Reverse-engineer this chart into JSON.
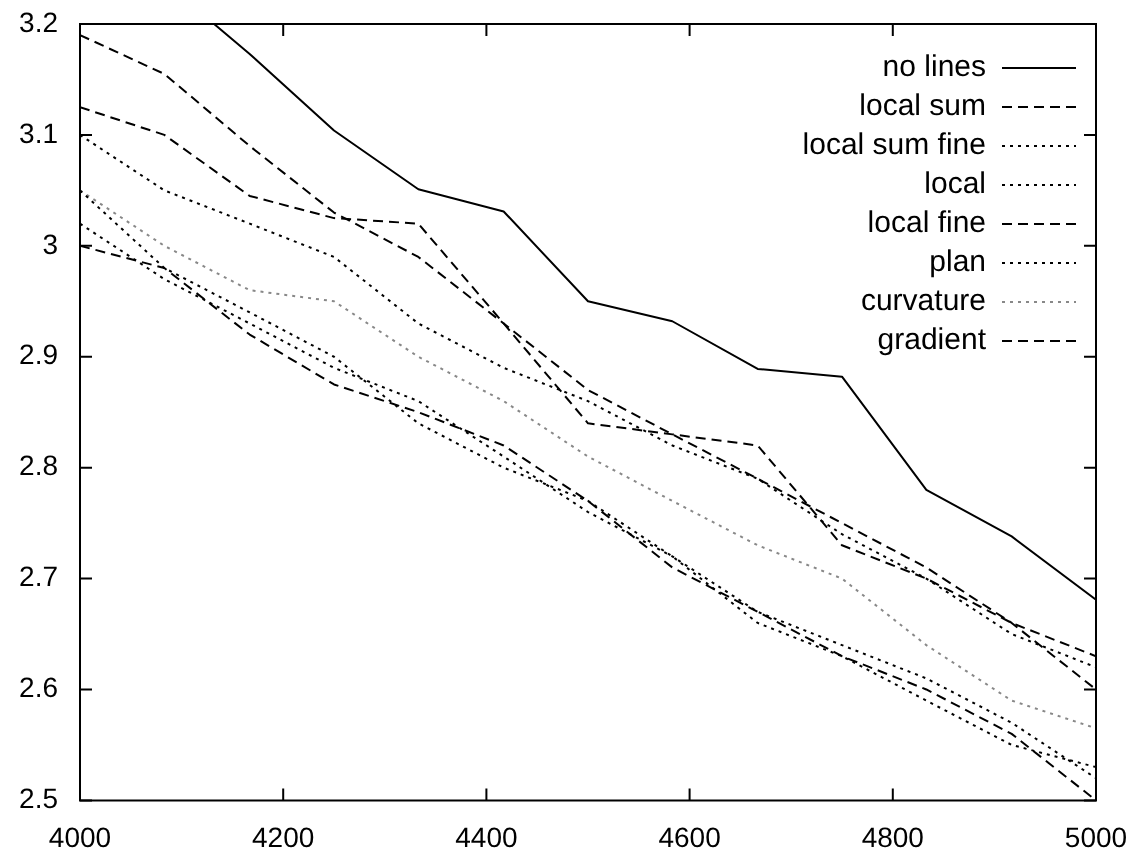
{
  "chart_data": {
    "type": "line",
    "x": [
      4000,
      4083,
      4167,
      4250,
      4333,
      4417,
      4500,
      4583,
      4667,
      4750,
      4833,
      4917,
      5000
    ],
    "xlim": [
      4000,
      5000
    ],
    "xticks": [
      4000,
      4200,
      4400,
      4600,
      4800,
      5000
    ],
    "ylim": [
      2.5,
      3.2
    ],
    "yticks": [
      2.5,
      2.6,
      2.7,
      2.8,
      2.9,
      3,
      3.1,
      3.2
    ],
    "grid": false,
    "legend": "top right",
    "marker": "none",
    "series": [
      {
        "name": "no lines",
        "color": "#000000",
        "line_style": "solid",
        "x": [
          4132,
          4167,
          4250,
          4333,
          4417,
          4500,
          4583,
          4667,
          4750,
          4833,
          4917,
          5000
        ],
        "values": [
          3.2,
          3.173,
          3.104,
          3.051,
          3.031,
          2.95,
          2.932,
          2.889,
          2.882,
          2.78,
          2.738,
          2.681
        ]
      },
      {
        "name": "local sum",
        "color": "#000000",
        "line_style": "dashed",
        "values": [
          3.125,
          3.1,
          3.045,
          3.025,
          3.02,
          2.93,
          2.84,
          2.83,
          2.82,
          2.73,
          2.7,
          2.66,
          2.63
        ]
      },
      {
        "name": "local sum fine",
        "color": "#000000",
        "line_style": "dotted",
        "values": [
          3.1,
          3.05,
          3.02,
          2.99,
          2.93,
          2.89,
          2.86,
          2.82,
          2.79,
          2.74,
          2.7,
          2.65,
          2.62
        ]
      },
      {
        "name": "local",
        "color": "#000000",
        "line_style": "dotted",
        "values": [
          3.05,
          2.98,
          2.94,
          2.9,
          2.84,
          2.8,
          2.77,
          2.72,
          2.66,
          2.63,
          2.59,
          2.55,
          2.53
        ]
      },
      {
        "name": "local fine",
        "color": "#000000",
        "line_style": "dashed",
        "values": [
          3.19,
          3.155,
          3.09,
          3.03,
          2.99,
          2.93,
          2.87,
          2.83,
          2.79,
          2.75,
          2.71,
          2.66,
          2.6
        ]
      },
      {
        "name": "plan",
        "color": "#000000",
        "line_style": "dotted",
        "values": [
          3.02,
          2.97,
          2.93,
          2.89,
          2.86,
          2.81,
          2.76,
          2.72,
          2.67,
          2.64,
          2.61,
          2.57,
          2.52
        ]
      },
      {
        "name": "curvature",
        "color": "#888888",
        "line_style": "dotted",
        "values": [
          3.05,
          3.0,
          2.96,
          2.95,
          2.9,
          2.86,
          2.81,
          2.77,
          2.73,
          2.7,
          2.64,
          2.59,
          2.565
        ]
      },
      {
        "name": "gradient",
        "color": "#000000",
        "line_style": "dashed",
        "values": [
          3.0,
          2.98,
          2.92,
          2.875,
          2.85,
          2.82,
          2.77,
          2.71,
          2.67,
          2.63,
          2.6,
          2.56,
          2.5
        ]
      }
    ]
  }
}
